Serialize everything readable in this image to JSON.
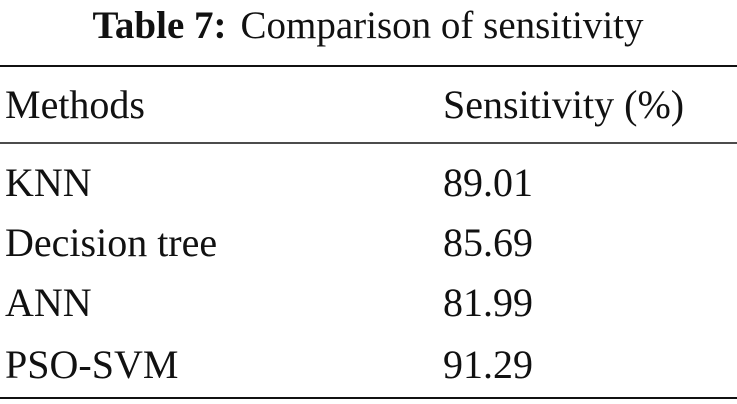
{
  "caption": {
    "label": "Table 7:",
    "title": "Comparison of sensitivity"
  },
  "table": {
    "header": [
      "Methods",
      "Sensitivity (%)"
    ],
    "rows": [
      [
        "KNN",
        "89.01"
      ],
      [
        "Decision tree",
        "85.69"
      ],
      [
        "ANN",
        "81.99"
      ],
      [
        "PSO-SVM",
        "91.29"
      ]
    ]
  }
}
